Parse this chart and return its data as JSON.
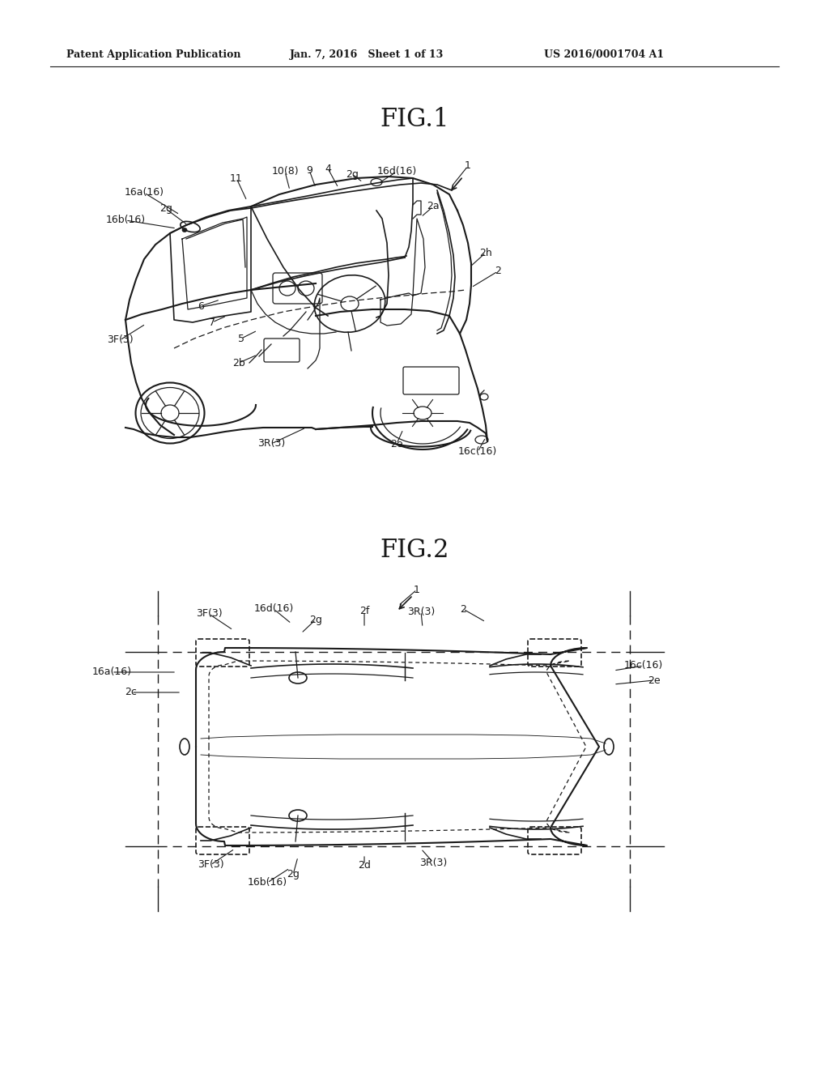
{
  "bg_color": "#ffffff",
  "line_color": "#1a1a1a",
  "fig_width": 10.24,
  "fig_height": 13.2,
  "dpi": 100,
  "header_text": "Patent Application Publication",
  "header_date": "Jan. 7, 2016   Sheet 1 of 13",
  "header_patent": "US 2016/0001704 A1",
  "fig1_title": "FIG.1",
  "fig2_title": "FIG.2"
}
